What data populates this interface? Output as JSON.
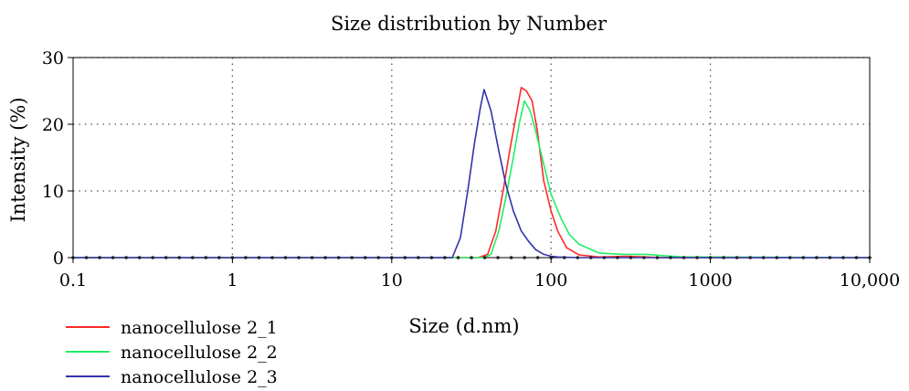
{
  "chart_data": {
    "type": "line",
    "title": "Size distribution by Number",
    "xlabel": "Size (d.nm)",
    "ylabel": "Intensity (%)",
    "xscale": "log",
    "xlim": [
      0.1,
      10000
    ],
    "ylim": [
      0,
      30
    ],
    "grid": true,
    "legend_position": "bottom-left",
    "x_ticks": [
      0.1,
      1,
      10,
      100,
      1000,
      10000
    ],
    "x_tick_labels": [
      "0.1",
      "1",
      "10",
      "100",
      "1000",
      "10,000"
    ],
    "y_ticks": [
      0,
      10,
      20,
      30
    ],
    "y_tick_labels": [
      "0",
      "10",
      "20",
      "30"
    ],
    "series": [
      {
        "name": "nanocellulose 2_1",
        "color": "#ff2a2a",
        "x": [
          0.1,
          35,
          40,
          45,
          50,
          55,
          60,
          65,
          70,
          76,
          82,
          90,
          100,
          110,
          125,
          150,
          200,
          300,
          400,
          500,
          10000
        ],
        "y": [
          0,
          0,
          0.5,
          4,
          10,
          16,
          21,
          25.5,
          25.0,
          23.5,
          19,
          11.5,
          7,
          4,
          1.5,
          0.4,
          0.1,
          0.2,
          0.1,
          0,
          0
        ]
      },
      {
        "name": "nanocellulose 2_2",
        "color": "#22ee66",
        "x": [
          0.1,
          38,
          42,
          47,
          52,
          58,
          63,
          68,
          74,
          80,
          90,
          100,
          115,
          130,
          150,
          200,
          280,
          400,
          500,
          680,
          10000
        ],
        "y": [
          0,
          0,
          0.5,
          4,
          9,
          15,
          20,
          23.5,
          22,
          19,
          14,
          9.5,
          6,
          3.5,
          2,
          0.7,
          0.5,
          0.5,
          0.3,
          0.1,
          0
        ]
      },
      {
        "name": "nanocellulose 2_3",
        "color": "#3333aa",
        "x": [
          0.1,
          24,
          27,
          30,
          33,
          36,
          38,
          42,
          47,
          52,
          58,
          65,
          72,
          80,
          90,
          100,
          110,
          150,
          10000
        ],
        "y": [
          0,
          0,
          3,
          10,
          17,
          22.5,
          25.2,
          22,
          16,
          11,
          7,
          4,
          2.5,
          1.2,
          0.5,
          0.2,
          0.1,
          0,
          0
        ]
      }
    ]
  }
}
